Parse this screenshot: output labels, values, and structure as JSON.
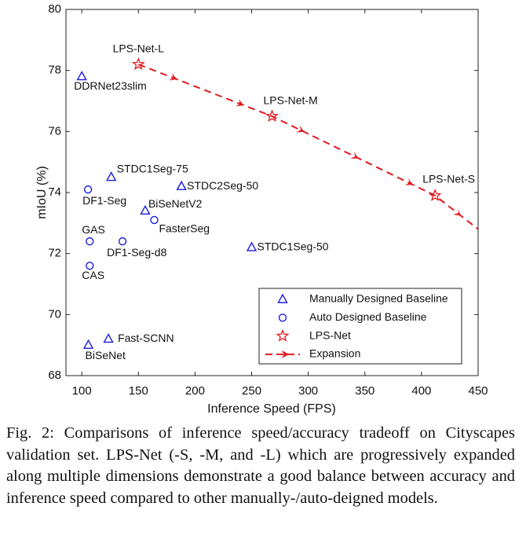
{
  "chart_data": {
    "type": "scatter",
    "xlabel": "Inference Speed (FPS)",
    "ylabel": "mIoU (%)",
    "xlim": [
      86,
      450
    ],
    "ylim": [
      68,
      80
    ],
    "xticks": [
      100,
      150,
      200,
      250,
      300,
      350,
      400,
      450
    ],
    "yticks": [
      68,
      70,
      72,
      74,
      76,
      78,
      80
    ],
    "grid": false,
    "legend": "lower right",
    "series": [
      {
        "name": "Manually Designed Baseline",
        "color": "#1a1adf",
        "marker": "triangle",
        "x": [
          100,
          126,
          188,
          156,
          250,
          123.5,
          105.8
        ],
        "y": [
          77.8,
          74.5,
          74.2,
          73.4,
          72.2,
          69.2,
          69.0
        ],
        "labels": [
          "DDRNet23slim",
          "STDC1Seg-75",
          "STDC2Seg-50",
          "BiSeNetV2",
          "STDC1Seg-50",
          "Fast-SCNN",
          "BiSeNet"
        ]
      },
      {
        "name": "Auto Designed Baseline",
        "color": "#1a1adf",
        "marker": "circle",
        "x": [
          105.5,
          164,
          107,
          136,
          107
        ],
        "y": [
          74.1,
          73.1,
          72.4,
          72.4,
          71.6
        ],
        "labels": [
          "DF1-Seg",
          "FasterSeg",
          "GAS",
          "DF1-Seg-d8",
          "CAS"
        ]
      },
      {
        "name": "LPS-Net",
        "color": "#e3181f",
        "marker": "star",
        "x": [
          150,
          268,
          412
        ],
        "y": [
          78.2,
          76.5,
          73.9
        ],
        "labels": [
          "LPS-Net-L",
          "LPS-Net-M",
          "LPS-Net-S"
        ]
      },
      {
        "name": "Expansion",
        "color": "#e3181f",
        "marker": "dashed-arrow",
        "x": [
          150,
          268,
          412,
          450
        ],
        "y": [
          78.2,
          76.5,
          73.9,
          72.8
        ]
      }
    ]
  },
  "caption": {
    "label": "Fig. 2:",
    "text": "Comparisons of inference speed/accuracy tradeoff on Cityscapes validation set. LPS-Net (-S, -M, and -L) which are progressively expanded along multiple dimensions demonstrate a good balance between accuracy and inference speed compared to other manually-/auto-deigned models."
  }
}
